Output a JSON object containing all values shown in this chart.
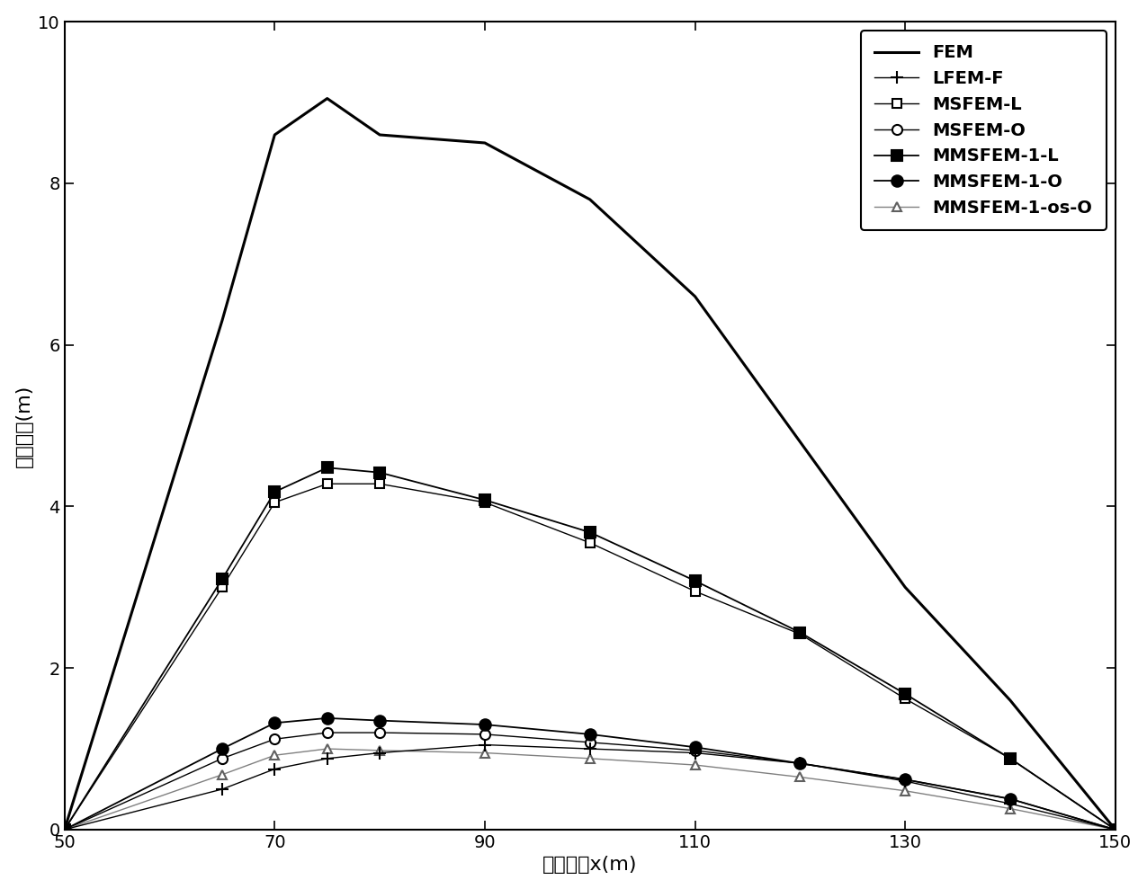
{
  "x": [
    50,
    65,
    70,
    75,
    80,
    90,
    100,
    110,
    120,
    130,
    140,
    150
  ],
  "series": {
    "FEM": {
      "y": [
        0,
        6.3,
        8.6,
        9.05,
        8.6,
        8.5,
        7.8,
        6.6,
        4.8,
        3.0,
        1.6,
        0
      ],
      "color": "#000000",
      "linewidth": 2.2,
      "marker": null,
      "markersize": 0,
      "markerfacecolor": "black",
      "markeredgecolor": "black",
      "linestyle": "-",
      "label": "FEM",
      "zorder": 5
    },
    "LFEM-F": {
      "y": [
        0,
        0.5,
        0.75,
        0.88,
        0.95,
        1.05,
        1.0,
        0.95,
        0.82,
        0.6,
        0.32,
        0
      ],
      "color": "#000000",
      "linewidth": 1.0,
      "marker": "+",
      "markersize": 10,
      "markerfacecolor": "black",
      "markeredgecolor": "black",
      "linestyle": "-",
      "label": "LFEM-F",
      "zorder": 4
    },
    "MSFEM-L": {
      "y": [
        0,
        3.0,
        4.05,
        4.28,
        4.28,
        4.05,
        3.55,
        2.95,
        2.42,
        1.62,
        0.88,
        0
      ],
      "color": "#000000",
      "linewidth": 1.0,
      "marker": "s",
      "markersize": 7,
      "markerfacecolor": "white",
      "markeredgecolor": "black",
      "linestyle": "-",
      "label": "MSFEM-L",
      "zorder": 3
    },
    "MSFEM-O": {
      "y": [
        0,
        0.88,
        1.12,
        1.2,
        1.2,
        1.18,
        1.08,
        0.98,
        0.82,
        0.62,
        0.38,
        0
      ],
      "color": "#000000",
      "linewidth": 1.0,
      "marker": "o",
      "markersize": 8,
      "markerfacecolor": "white",
      "markeredgecolor": "black",
      "linestyle": "-",
      "label": "MSFEM-O",
      "zorder": 3
    },
    "MMSFEM-1-L": {
      "y": [
        0,
        3.1,
        4.18,
        4.48,
        4.42,
        4.08,
        3.68,
        3.08,
        2.44,
        1.68,
        0.88,
        0
      ],
      "color": "#000000",
      "linewidth": 1.3,
      "marker": "s",
      "markersize": 8,
      "markerfacecolor": "black",
      "markeredgecolor": "black",
      "linestyle": "-",
      "label": "MMSFEM-1-L",
      "zorder": 4
    },
    "MMSFEM-1-O": {
      "y": [
        0,
        1.0,
        1.32,
        1.38,
        1.35,
        1.3,
        1.18,
        1.02,
        0.82,
        0.62,
        0.38,
        0
      ],
      "color": "#000000",
      "linewidth": 1.3,
      "marker": "o",
      "markersize": 9,
      "markerfacecolor": "black",
      "markeredgecolor": "black",
      "linestyle": "-",
      "label": "MMSFEM-1-O",
      "zorder": 4
    },
    "MMSFEM-1-os-O": {
      "y": [
        0,
        0.68,
        0.92,
        1.0,
        0.98,
        0.95,
        0.88,
        0.8,
        0.65,
        0.48,
        0.26,
        0
      ],
      "color": "#808080",
      "linewidth": 1.0,
      "marker": "^",
      "markersize": 7,
      "markerfacecolor": "white",
      "markeredgecolor": "#606060",
      "linestyle": "-",
      "label": "MMSFEM-1-os-O",
      "zorder": 3
    }
  },
  "xlabel": "水平坐标x(m)",
  "ylabel": "绝对误差(m)",
  "xlim": [
    50,
    150
  ],
  "ylim": [
    0,
    10
  ],
  "xticks": [
    50,
    70,
    90,
    110,
    130,
    150
  ],
  "yticks": [
    0,
    2,
    4,
    6,
    8,
    10
  ],
  "legend_fontsize": 14,
  "xlabel_fontsize": 16,
  "ylabel_fontsize": 16,
  "tick_fontsize": 14,
  "background_color": "white"
}
